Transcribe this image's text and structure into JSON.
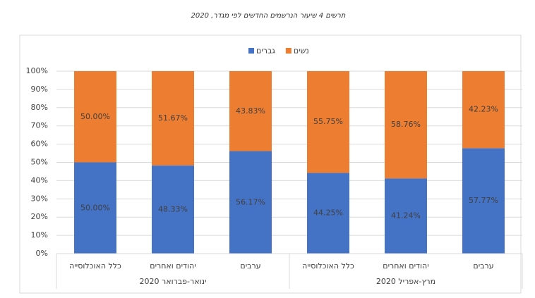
{
  "chart_data": {
    "type": "stacked_bar",
    "title": "תרשים 4  שיעור הנרשמים החדשים לפי מגדר, 2020",
    "groups": [
      {
        "name": "ינואר-פברואר 2020",
        "categories": [
          "כלל האוכלוסייה",
          "יהודים ואחרים",
          "ערבים"
        ]
      },
      {
        "name": "מרץ-אפריל 2020",
        "categories": [
          "כלל האוכלוסייה",
          "יהודים ואחרים",
          "ערבים"
        ]
      }
    ],
    "series": [
      {
        "name": "גברים",
        "color": "#4472c4",
        "values": [
          50.0,
          48.33,
          56.17,
          44.25,
          41.24,
          57.77
        ],
        "value_labels": [
          "50.00%",
          "48.33%",
          "56.17%",
          "44.25%",
          "41.24%",
          "57.77%"
        ]
      },
      {
        "name": "נשים",
        "color": "#ed7d31",
        "values": [
          50.0,
          51.67,
          43.83,
          55.75,
          58.76,
          42.23
        ],
        "value_labels": [
          "50.00%",
          "51.67%",
          "43.83%",
          "55.75%",
          "58.76%",
          "42.23%"
        ]
      }
    ],
    "ylim": [
      0,
      100
    ],
    "yticks": [
      {
        "value": 0,
        "label": "0%"
      },
      {
        "value": 10,
        "label": "10%"
      },
      {
        "value": 20,
        "label": "20%"
      },
      {
        "value": 30,
        "label": "30%"
      },
      {
        "value": 40,
        "label": "40%"
      },
      {
        "value": 50,
        "label": "50%"
      },
      {
        "value": 60,
        "label": "60%"
      },
      {
        "value": 70,
        "label": "70%"
      },
      {
        "value": 80,
        "label": "80%"
      },
      {
        "value": 90,
        "label": "90%"
      },
      {
        "value": 100,
        "label": "100%"
      }
    ],
    "grid": true,
    "legend": "top"
  }
}
